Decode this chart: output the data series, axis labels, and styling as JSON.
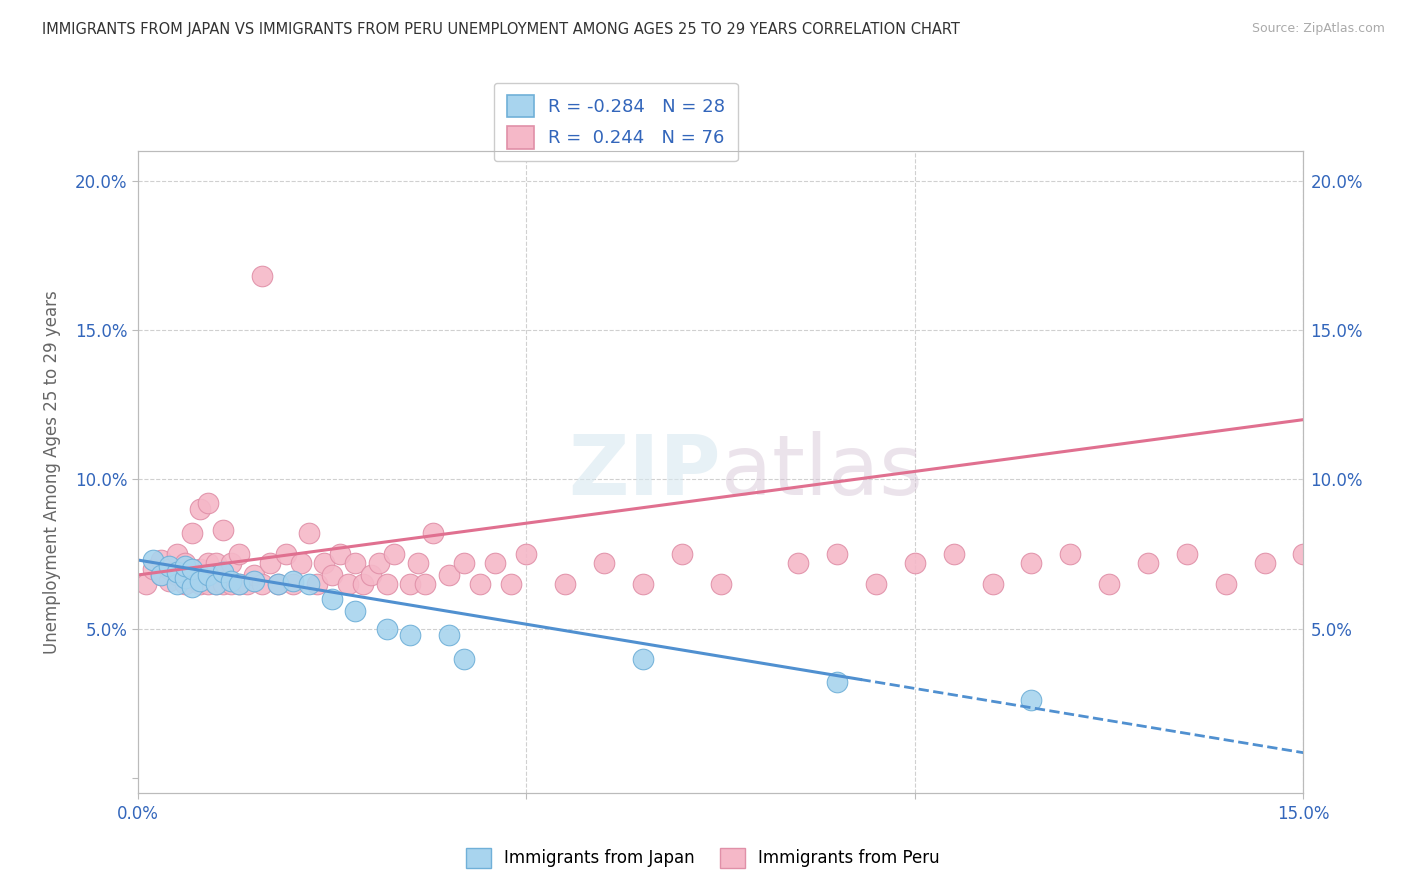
{
  "title": "IMMIGRANTS FROM JAPAN VS IMMIGRANTS FROM PERU UNEMPLOYMENT AMONG AGES 25 TO 29 YEARS CORRELATION CHART",
  "source": "Source: ZipAtlas.com",
  "ylabel": "Unemployment Among Ages 25 to 29 years",
  "xlim": [
    0.0,
    0.15
  ],
  "ylim": [
    -0.005,
    0.21
  ],
  "background_color": "#ffffff",
  "japan_R": -0.284,
  "japan_N": 28,
  "peru_R": 0.244,
  "peru_N": 76,
  "japan_color": "#a8d4ee",
  "peru_color": "#f5b8c8",
  "japan_line_color": "#5090d0",
  "peru_line_color": "#e07090",
  "japan_x": [
    0.002,
    0.003,
    0.004,
    0.005,
    0.005,
    0.006,
    0.006,
    0.007,
    0.007,
    0.008,
    0.009,
    0.01,
    0.011,
    0.012,
    0.013,
    0.015,
    0.018,
    0.02,
    0.022,
    0.025,
    0.028,
    0.032,
    0.035,
    0.04,
    0.042,
    0.065,
    0.09,
    0.115
  ],
  "japan_y": [
    0.073,
    0.068,
    0.071,
    0.065,
    0.069,
    0.067,
    0.071,
    0.064,
    0.07,
    0.066,
    0.068,
    0.065,
    0.069,
    0.066,
    0.065,
    0.066,
    0.065,
    0.066,
    0.065,
    0.06,
    0.056,
    0.05,
    0.048,
    0.048,
    0.04,
    0.04,
    0.032,
    0.026
  ],
  "peru_x": [
    0.001,
    0.002,
    0.003,
    0.003,
    0.004,
    0.004,
    0.005,
    0.005,
    0.006,
    0.006,
    0.007,
    0.007,
    0.008,
    0.008,
    0.008,
    0.009,
    0.009,
    0.009,
    0.01,
    0.01,
    0.011,
    0.011,
    0.012,
    0.012,
    0.013,
    0.013,
    0.014,
    0.015,
    0.016,
    0.016,
    0.017,
    0.018,
    0.019,
    0.02,
    0.021,
    0.022,
    0.023,
    0.024,
    0.025,
    0.026,
    0.027,
    0.028,
    0.029,
    0.03,
    0.031,
    0.032,
    0.033,
    0.035,
    0.036,
    0.037,
    0.038,
    0.04,
    0.042,
    0.044,
    0.046,
    0.048,
    0.05,
    0.055,
    0.06,
    0.065,
    0.07,
    0.075,
    0.085,
    0.09,
    0.095,
    0.1,
    0.105,
    0.11,
    0.115,
    0.12,
    0.125,
    0.13,
    0.135,
    0.14,
    0.145,
    0.15
  ],
  "peru_y": [
    0.065,
    0.07,
    0.068,
    0.073,
    0.066,
    0.07,
    0.068,
    0.075,
    0.065,
    0.072,
    0.068,
    0.082,
    0.065,
    0.07,
    0.09,
    0.065,
    0.072,
    0.092,
    0.065,
    0.072,
    0.065,
    0.083,
    0.065,
    0.072,
    0.065,
    0.075,
    0.065,
    0.068,
    0.168,
    0.065,
    0.072,
    0.065,
    0.075,
    0.065,
    0.072,
    0.082,
    0.065,
    0.072,
    0.068,
    0.075,
    0.065,
    0.072,
    0.065,
    0.068,
    0.072,
    0.065,
    0.075,
    0.065,
    0.072,
    0.065,
    0.082,
    0.068,
    0.072,
    0.065,
    0.072,
    0.065,
    0.075,
    0.065,
    0.072,
    0.065,
    0.075,
    0.065,
    0.072,
    0.075,
    0.065,
    0.072,
    0.075,
    0.065,
    0.072,
    0.075,
    0.065,
    0.072,
    0.075,
    0.065,
    0.072,
    0.075
  ]
}
